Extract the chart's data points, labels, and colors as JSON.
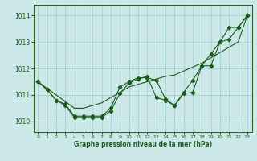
{
  "background_color": "#cce8e8",
  "grid_color": "#99cccc",
  "line_color": "#1a5c1a",
  "xlabel": "Graphe pression niveau de la mer (hPa)",
  "x_ticks": [
    0,
    1,
    2,
    3,
    4,
    5,
    6,
    7,
    8,
    9,
    10,
    11,
    12,
    13,
    14,
    15,
    16,
    17,
    18,
    19,
    20,
    21,
    22,
    23
  ],
  "ylim": [
    1009.6,
    1014.4
  ],
  "y_ticks": [
    1010,
    1011,
    1012,
    1013,
    1014
  ],
  "series_detail": [
    1011.5,
    1011.2,
    1010.8,
    1010.6,
    1010.15,
    1010.15,
    1010.15,
    1010.15,
    1010.4,
    1011.05,
    1011.45,
    1011.6,
    1011.7,
    1010.9,
    1010.8,
    1010.6,
    1011.05,
    1011.1,
    1012.1,
    1012.55,
    1013.0,
    1013.55,
    1013.55,
    1014.0
  ],
  "series_mid": [
    1011.5,
    1011.2,
    1010.8,
    1010.65,
    1010.2,
    1010.2,
    1010.2,
    1010.2,
    1010.5,
    1011.3,
    1011.5,
    1011.65,
    1011.65,
    1011.55,
    1010.85,
    1010.6,
    1011.1,
    1011.55,
    1012.1,
    1012.1,
    1013.0,
    1013.1,
    1013.55,
    1014.0
  ],
  "series_trend": [
    1011.5,
    1011.25,
    1011.0,
    1010.75,
    1010.5,
    1010.5,
    1010.6,
    1010.7,
    1010.9,
    1011.1,
    1011.3,
    1011.4,
    1011.5,
    1011.6,
    1011.7,
    1011.75,
    1011.9,
    1012.05,
    1012.2,
    1012.4,
    1012.6,
    1012.8,
    1013.0,
    1014.0
  ]
}
